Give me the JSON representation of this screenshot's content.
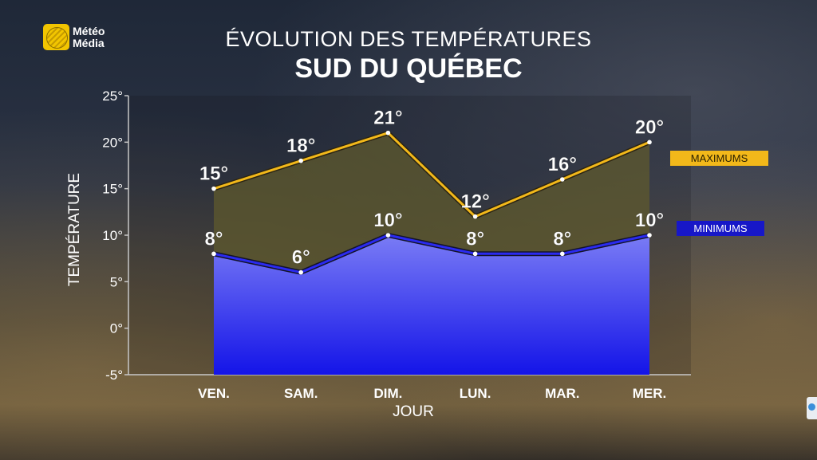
{
  "brand": {
    "name_line1": "Météo",
    "name_line2": "Média"
  },
  "chart_data": {
    "type": "area",
    "title": "ÉVOLUTION DES TEMPÉRATURES",
    "subtitle": "SUD DU QUÉBEC",
    "xlabel": "JOUR",
    "ylabel": "TEMPÉRATURE",
    "categories": [
      "VEN.",
      "SAM.",
      "DIM.",
      "LUN.",
      "MAR.",
      "MER."
    ],
    "ylim": [
      -5,
      25
    ],
    "yticks": [
      -5,
      0,
      5,
      10,
      15,
      20,
      25
    ],
    "unit": "°",
    "legend_placement": "right",
    "series": [
      {
        "name": "MAXIMUMS",
        "values": [
          15,
          18,
          21,
          12,
          16,
          20
        ],
        "color": "#f2b81a"
      },
      {
        "name": "MINIMUMS",
        "values": [
          8,
          6,
          10,
          8,
          8,
          10
        ],
        "color": "#2a2af0"
      }
    ]
  }
}
